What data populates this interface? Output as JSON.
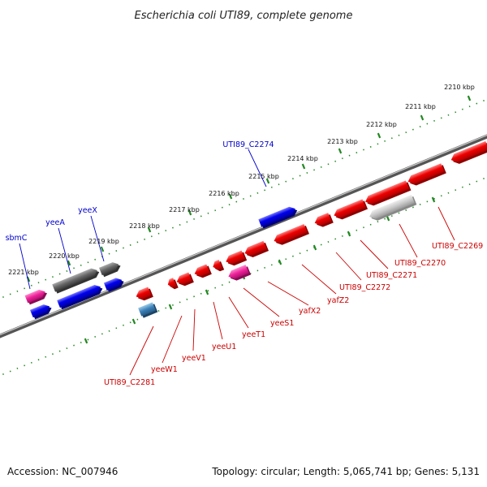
{
  "title": "Escherichia coli UTI89, complete genome",
  "scale_labels": [
    "2210 kbp",
    "2211 kbp",
    "2212 kbp",
    "2213 kbp",
    "2214 kbp",
    "2215 kbp",
    "2216 kbp",
    "2217 kbp",
    "2218 kbp",
    "2219 kbp",
    "2220 kbp",
    "2221 kbp"
  ],
  "top_labels": [
    "UTI89_C2274",
    "yeeX",
    "yeeA",
    "sbmC"
  ],
  "bottom_labels": [
    "UTI89_C2269",
    "UTI89_C2270",
    "UTI89_C2271",
    "UTI89_C2272",
    "yafZ2",
    "yafX2",
    "yeeS1",
    "yeeT1",
    "yeeU1",
    "yeeV1",
    "yeeW1",
    "UTI89_C2281"
  ],
  "footer": {
    "accession": "Accession: NC_007946",
    "summary": "Topology: circular; Length: 5,065,741 bp; Genes: 5,131"
  },
  "colors": {
    "forward_gene": "#0000ee",
    "reverse_gene": "#ee0000",
    "pseudo_gene": "#666666",
    "rna_gene": "#ee2299",
    "tick": "#228822"
  }
}
